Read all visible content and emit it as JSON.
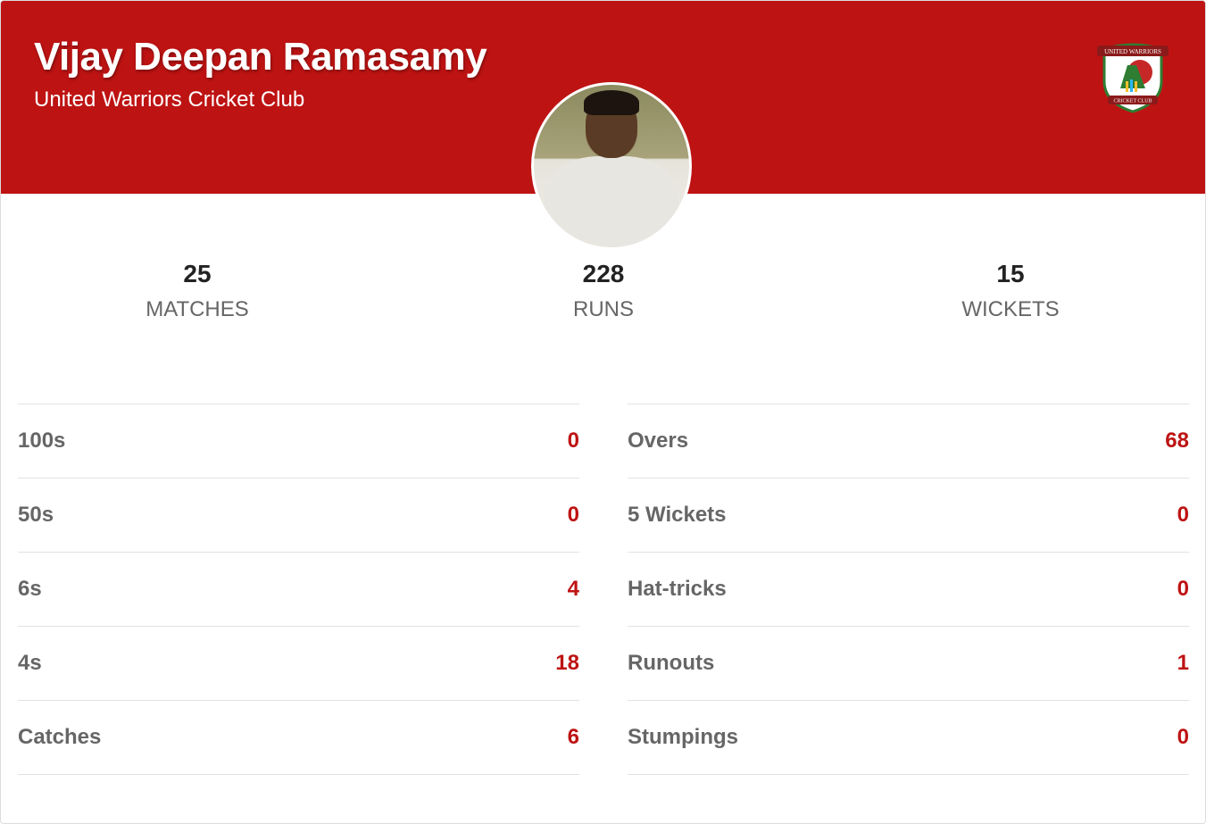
{
  "player": {
    "name": "Vijay Deepan Ramasamy",
    "club": "United Warriors Cricket Club"
  },
  "logo": {
    "top_text": "UNITED WARRIORS",
    "bottom_text": "CRICKET CLUB"
  },
  "summary": [
    {
      "value": "25",
      "label": "MATCHES"
    },
    {
      "value": "228",
      "label": "RUNS"
    },
    {
      "value": "15",
      "label": "WICKETS"
    }
  ],
  "batting": [
    {
      "label": "100s",
      "value": "0"
    },
    {
      "label": "50s",
      "value": "0"
    },
    {
      "label": "6s",
      "value": "4"
    },
    {
      "label": "4s",
      "value": "18"
    },
    {
      "label": "Catches",
      "value": "6"
    }
  ],
  "bowling": [
    {
      "label": "Overs",
      "value": "68"
    },
    {
      "label": "5 Wickets",
      "value": "0"
    },
    {
      "label": "Hat-tricks",
      "value": "0"
    },
    {
      "label": "Runouts",
      "value": "1"
    },
    {
      "label": "Stumpings",
      "value": "0"
    }
  ],
  "colors": {
    "accent": "#be1313"
  }
}
